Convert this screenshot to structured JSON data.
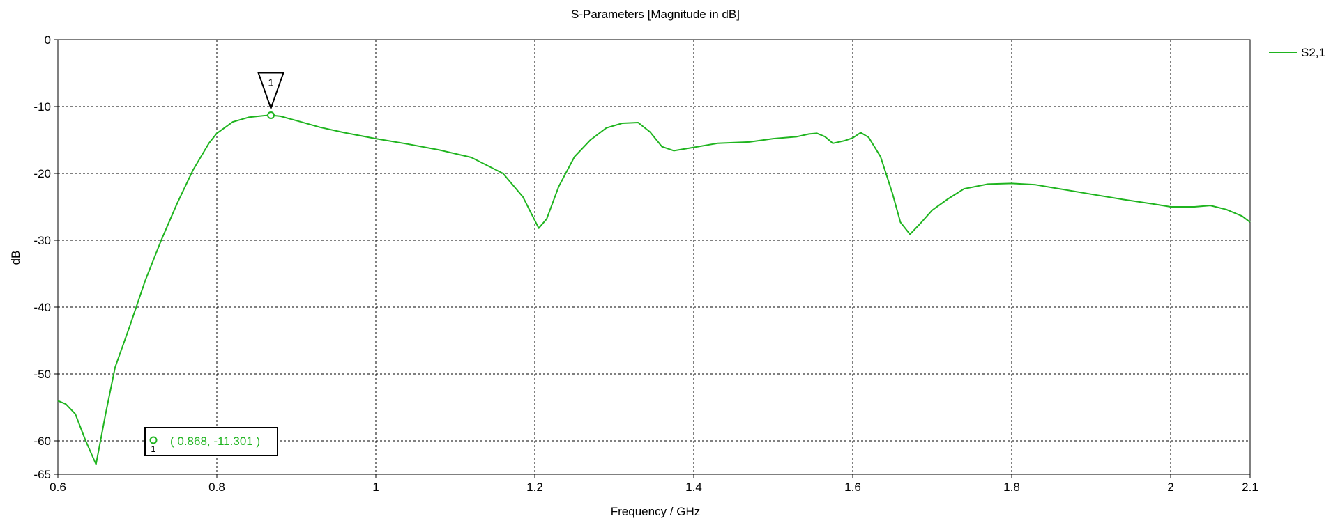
{
  "chart_data": {
    "type": "line",
    "title": "S-Parameters [Magnitude in dB]",
    "xlabel": "Frequency / GHz",
    "ylabel": "dB",
    "xlim": [
      0.6,
      2.1
    ],
    "ylim": [
      -65,
      0
    ],
    "xticks": [
      0.6,
      0.8,
      1,
      1.2,
      1.4,
      1.6,
      1.8,
      2,
      2.1
    ],
    "xtick_labels": [
      "0.6",
      "0.8",
      "1",
      "1.2",
      "1.4",
      "1.6",
      "1.8",
      "2",
      "2.1"
    ],
    "yticks": [
      0,
      -10,
      -20,
      -30,
      -40,
      -50,
      -60,
      -65
    ],
    "ytick_labels": [
      "0",
      "-10",
      "-20",
      "-30",
      "-40",
      "-50",
      "-60",
      "-65"
    ],
    "grid": true,
    "legend_position": "top-right",
    "series": [
      {
        "name": "S2,1",
        "color": "#1fb41f",
        "x": [
          0.6,
          0.61,
          0.622,
          0.635,
          0.648,
          0.66,
          0.672,
          0.69,
          0.71,
          0.73,
          0.75,
          0.77,
          0.79,
          0.8,
          0.82,
          0.84,
          0.86,
          0.868,
          0.88,
          0.9,
          0.93,
          0.96,
          1.0,
          1.04,
          1.08,
          1.12,
          1.16,
          1.185,
          1.205,
          1.215,
          1.23,
          1.25,
          1.27,
          1.29,
          1.31,
          1.33,
          1.345,
          1.36,
          1.375,
          1.4,
          1.43,
          1.47,
          1.5,
          1.53,
          1.545,
          1.555,
          1.565,
          1.575,
          1.59,
          1.6,
          1.61,
          1.62,
          1.635,
          1.65,
          1.66,
          1.672,
          1.685,
          1.7,
          1.72,
          1.74,
          1.77,
          1.8,
          1.83,
          1.86,
          1.9,
          1.94,
          1.98,
          2.0,
          2.03,
          2.05,
          2.07,
          2.09,
          2.1
        ],
        "y": [
          -54,
          -54.5,
          -56,
          -60,
          -63.5,
          -56,
          -49,
          -43,
          -36,
          -30,
          -24.5,
          -19.5,
          -15.5,
          -14,
          -12.3,
          -11.6,
          -11.35,
          -11.301,
          -11.45,
          -12.1,
          -13.1,
          -13.9,
          -14.8,
          -15.6,
          -16.5,
          -17.6,
          -20,
          -23.5,
          -28.2,
          -26.8,
          -22,
          -17.5,
          -15,
          -13.2,
          -12.5,
          -12.4,
          -13.8,
          -16,
          -16.6,
          -16.1,
          -15.5,
          -15.3,
          -14.8,
          -14.5,
          -14.1,
          -14.0,
          -14.5,
          -15.5,
          -15.1,
          -14.7,
          -13.9,
          -14.6,
          -17.5,
          -23,
          -27.3,
          -29.1,
          -27.5,
          -25.5,
          -23.8,
          -22.3,
          -21.6,
          -21.5,
          -21.7,
          -22.3,
          -23.1,
          -23.9,
          -24.6,
          -25,
          -25,
          -24.8,
          -25.4,
          -26.4,
          -27.3
        ]
      }
    ],
    "marker": {
      "id": "1",
      "x": 0.868,
      "y": -11.301,
      "readout": "( 0.868, -11.301 )"
    }
  }
}
